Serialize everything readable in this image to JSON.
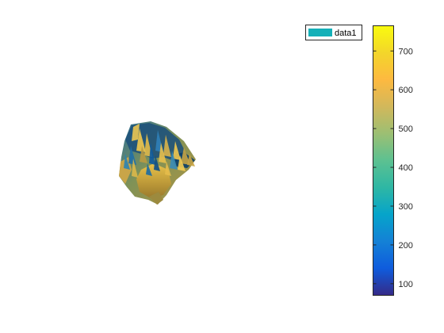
{
  "chart_data": {
    "type": "surface",
    "title": "",
    "xlabel": "",
    "ylabel": "",
    "axes_visible": false,
    "grid": false,
    "legend": {
      "placement": "top-right",
      "entries": [
        {
          "label": "data1",
          "color": "#14b0b8"
        }
      ]
    },
    "colorbar": {
      "placement": "right",
      "colormap": "parula",
      "clim": [
        70,
        765
      ],
      "ticks": [
        100,
        200,
        300,
        400,
        500,
        600,
        700
      ],
      "tick_labels": [
        "100",
        "200",
        "300",
        "400",
        "500",
        "600",
        "700"
      ]
    },
    "series": [
      {
        "name": "data1",
        "value_range": [
          70,
          765
        ]
      }
    ]
  }
}
